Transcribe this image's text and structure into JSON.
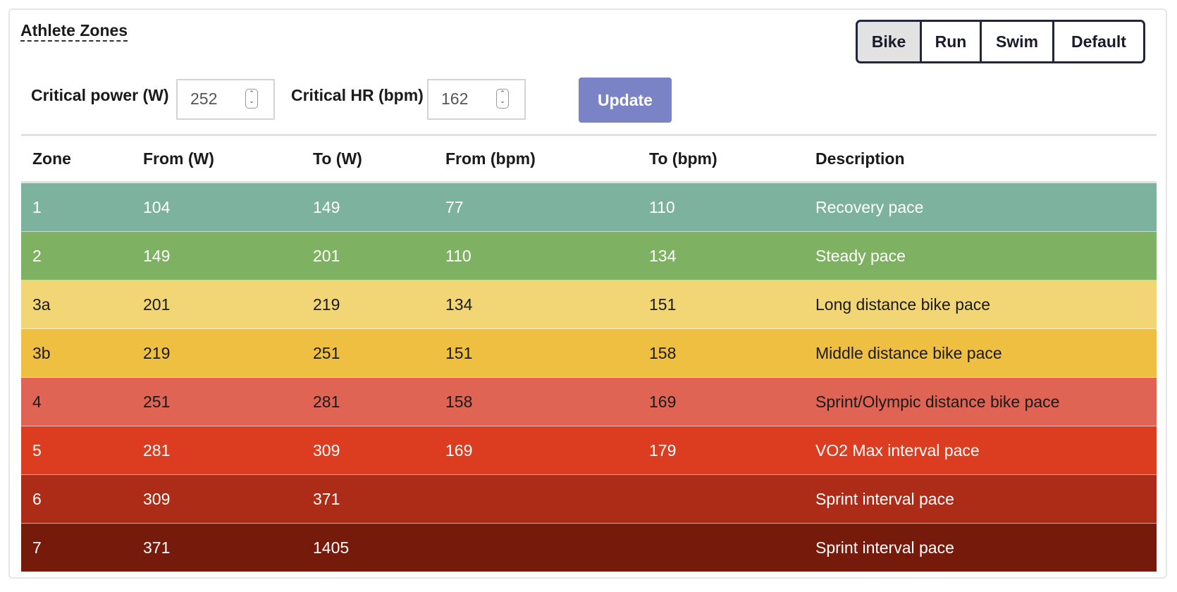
{
  "title": "Athlete Zones",
  "sport_tabs": [
    {
      "label": "Bike",
      "active": true
    },
    {
      "label": "Run",
      "active": false
    },
    {
      "label": "Swim",
      "active": false
    },
    {
      "label": "Default",
      "active": false
    }
  ],
  "form": {
    "critical_power_label": "Critical power (W)",
    "critical_power_value": "252",
    "critical_hr_label": "Critical HR (bpm)",
    "critical_hr_value": "162",
    "update_label": "Update"
  },
  "table": {
    "headers": [
      "Zone",
      "From (W)",
      "To (W)",
      "From (bpm)",
      "To (bpm)",
      "Description"
    ],
    "rows": [
      {
        "cells": [
          "1",
          "104",
          "149",
          "77",
          "110",
          "Recovery pace"
        ],
        "bg": "#7db39e",
        "fg": "#ffffff"
      },
      {
        "cells": [
          "2",
          "149",
          "201",
          "110",
          "134",
          "Steady pace"
        ],
        "bg": "#7fb162",
        "fg": "#ffffff"
      },
      {
        "cells": [
          "3a",
          "201",
          "219",
          "134",
          "151",
          "Long distance bike pace"
        ],
        "bg": "#f2d675",
        "fg": "#1a1a1a"
      },
      {
        "cells": [
          "3b",
          "219",
          "251",
          "151",
          "158",
          "Middle distance bike pace"
        ],
        "bg": "#efbf41",
        "fg": "#1a1a1a"
      },
      {
        "cells": [
          "4",
          "251",
          "281",
          "158",
          "169",
          "Sprint/Olympic distance bike pace"
        ],
        "bg": "#e06453",
        "fg": "#1a1a1a"
      },
      {
        "cells": [
          "5",
          "281",
          "309",
          "169",
          "179",
          "VO2 Max interval pace"
        ],
        "bg": "#dc3d20",
        "fg": "#ffffff"
      },
      {
        "cells": [
          "6",
          "309",
          "371",
          "",
          "",
          "Sprint interval pace"
        ],
        "bg": "#ad2c17",
        "fg": "#ffffff"
      },
      {
        "cells": [
          "7",
          "371",
          "1405",
          "",
          "",
          "Sprint interval pace"
        ],
        "bg": "#761b0b",
        "fg": "#ffffff"
      }
    ]
  }
}
